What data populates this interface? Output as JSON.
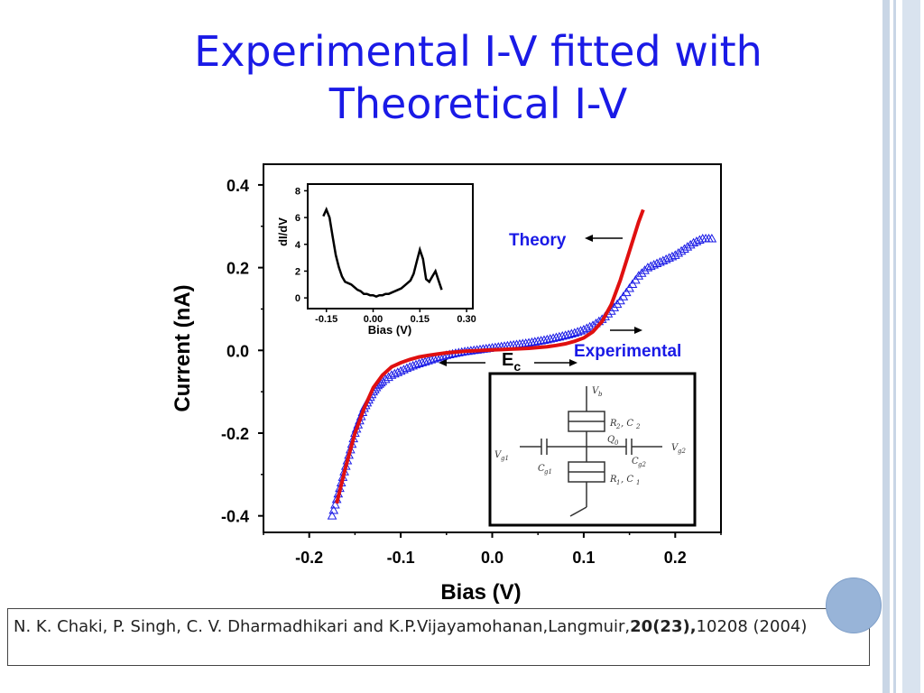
{
  "slide": {
    "title_line1": "Experimental I-V fitted with",
    "title_line2": "Theoretical I-V",
    "reference_text": "N. K. Chaki, P. Singh, C. V. Dharmadhikari and K.P.Vijayamohanan,Langmuir,",
    "reference_bold": "20(23),",
    "reference_tail": "10208 (2004)"
  },
  "chart_data": [
    {
      "type": "line",
      "xlabel": "Bias (V)",
      "ylabel": "Current (nA)",
      "xlim": [
        -0.25,
        0.25
      ],
      "ylim": [
        -0.44,
        0.45
      ],
      "x_ticks": [
        "-0.2",
        "-0.1",
        "0.0",
        "0.1",
        "0.2"
      ],
      "y_ticks": [
        "0.4",
        "0.2",
        "0.0",
        "-0.2",
        "-0.4"
      ],
      "series": [
        {
          "name": "Theory",
          "color": "#e01010",
          "marker": "none",
          "x": [
            -0.17,
            -0.16,
            -0.15,
            -0.14,
            -0.13,
            -0.12,
            -0.11,
            -0.1,
            -0.09,
            -0.08,
            -0.07,
            -0.06,
            -0.05,
            -0.04,
            -0.03,
            -0.02,
            -0.01,
            0.0,
            0.01,
            0.02,
            0.03,
            0.04,
            0.05,
            0.06,
            0.07,
            0.08,
            0.09,
            0.1,
            0.11,
            0.12,
            0.13,
            0.14,
            0.15,
            0.16,
            0.165
          ],
          "y": [
            -0.37,
            -0.28,
            -0.2,
            -0.14,
            -0.09,
            -0.06,
            -0.04,
            -0.03,
            -0.022,
            -0.016,
            -0.012,
            -0.009,
            -0.006,
            -0.004,
            -0.002,
            -0.001,
            0.0,
            0.001,
            0.002,
            0.003,
            0.004,
            0.005,
            0.007,
            0.009,
            0.012,
            0.016,
            0.022,
            0.03,
            0.045,
            0.07,
            0.11,
            0.17,
            0.24,
            0.31,
            0.34
          ]
        },
        {
          "name": "Experimental",
          "color": "#1a1ae6",
          "marker": "triangle",
          "x": [
            -0.175,
            -0.17,
            -0.165,
            -0.16,
            -0.155,
            -0.15,
            -0.145,
            -0.14,
            -0.135,
            -0.13,
            -0.125,
            -0.12,
            -0.11,
            -0.1,
            -0.09,
            -0.08,
            -0.07,
            -0.06,
            -0.05,
            -0.04,
            -0.03,
            -0.02,
            -0.01,
            0.0,
            0.01,
            0.02,
            0.03,
            0.04,
            0.05,
            0.06,
            0.07,
            0.08,
            0.09,
            0.1,
            0.11,
            0.12,
            0.13,
            0.14,
            0.15,
            0.16,
            0.17,
            0.18,
            0.19,
            0.2,
            0.21,
            0.22,
            0.23,
            0.24
          ],
          "y": [
            -0.4,
            -0.36,
            -0.32,
            -0.28,
            -0.24,
            -0.2,
            -0.17,
            -0.14,
            -0.12,
            -0.1,
            -0.085,
            -0.075,
            -0.06,
            -0.05,
            -0.04,
            -0.032,
            -0.025,
            -0.018,
            -0.012,
            -0.007,
            -0.003,
            0.0,
            0.003,
            0.006,
            0.009,
            0.012,
            0.015,
            0.018,
            0.022,
            0.026,
            0.031,
            0.036,
            0.042,
            0.05,
            0.06,
            0.075,
            0.095,
            0.12,
            0.15,
            0.18,
            0.2,
            0.21,
            0.22,
            0.23,
            0.245,
            0.26,
            0.27,
            0.27
          ]
        }
      ],
      "annotations": [
        "Theory",
        "Experimental",
        "E",
        "c"
      ]
    },
    {
      "type": "line",
      "xlabel": "Bias (V)",
      "ylabel": "dI/dV",
      "xlim": [
        -0.21,
        0.32
      ],
      "ylim": [
        -0.8,
        8.5
      ],
      "x_ticks": [
        "-0.15",
        "0.00",
        "0.15",
        "0.30"
      ],
      "y_ticks": [
        "8",
        "6",
        "4",
        "2",
        "0"
      ],
      "series": [
        {
          "color": "#000000",
          "x": [
            -0.16,
            -0.15,
            -0.14,
            -0.13,
            -0.12,
            -0.11,
            -0.1,
            -0.09,
            -0.08,
            -0.07,
            -0.06,
            -0.05,
            -0.04,
            -0.03,
            -0.02,
            -0.01,
            0.0,
            0.01,
            0.02,
            0.03,
            0.04,
            0.05,
            0.06,
            0.07,
            0.08,
            0.09,
            0.1,
            0.11,
            0.12,
            0.13,
            0.14,
            0.15,
            0.16,
            0.17,
            0.18,
            0.19,
            0.2,
            0.21,
            0.22
          ],
          "y": [
            6.1,
            6.6,
            6.0,
            4.6,
            3.2,
            2.3,
            1.6,
            1.2,
            1.1,
            1.0,
            0.8,
            0.6,
            0.5,
            0.3,
            0.3,
            0.2,
            0.2,
            0.1,
            0.2,
            0.2,
            0.3,
            0.3,
            0.4,
            0.5,
            0.6,
            0.7,
            0.9,
            1.1,
            1.3,
            1.8,
            2.7,
            3.6,
            2.9,
            1.4,
            1.2,
            1.6,
            2.0,
            1.3,
            0.6
          ]
        }
      ]
    }
  ]
}
